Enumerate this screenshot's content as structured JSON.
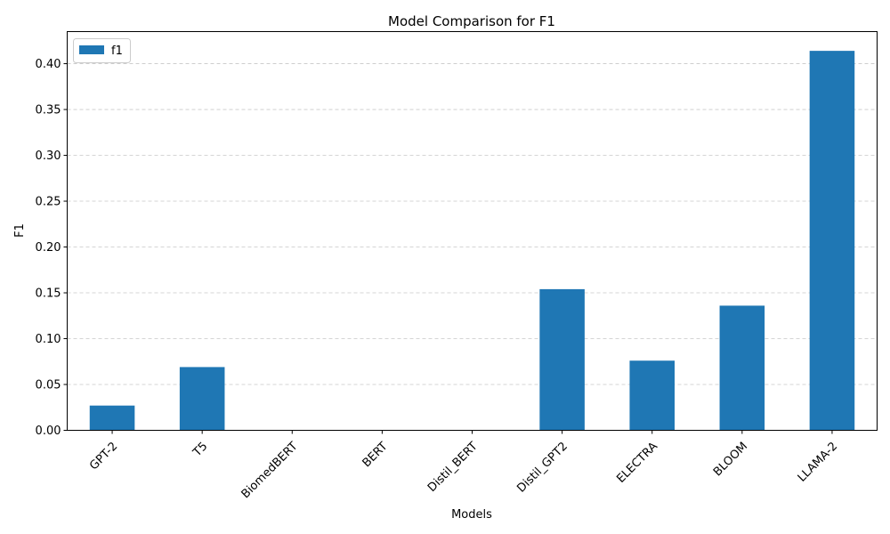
{
  "chart_data": {
    "type": "bar",
    "title": "Model Comparison for F1",
    "xlabel": "Models",
    "ylabel": "F1",
    "categories": [
      "GPT-2",
      "T5",
      "BiomedBERT",
      "BERT",
      "Distil_BERT",
      "Distil_GPT2",
      "ELECTRA",
      "BLOOM",
      "LLAMA-2"
    ],
    "series": [
      {
        "name": "f1",
        "values": [
          0.027,
          0.069,
          0.0,
          0.0,
          0.0,
          0.154,
          0.076,
          0.136,
          0.414
        ],
        "color": "#1f77b4"
      }
    ],
    "ylim": [
      0,
      0.435
    ],
    "yticks": [
      "0.00",
      "0.05",
      "0.10",
      "0.15",
      "0.20",
      "0.25",
      "0.30",
      "0.35",
      "0.40"
    ],
    "grid": "y-dashed",
    "legend_position": "top-left"
  }
}
